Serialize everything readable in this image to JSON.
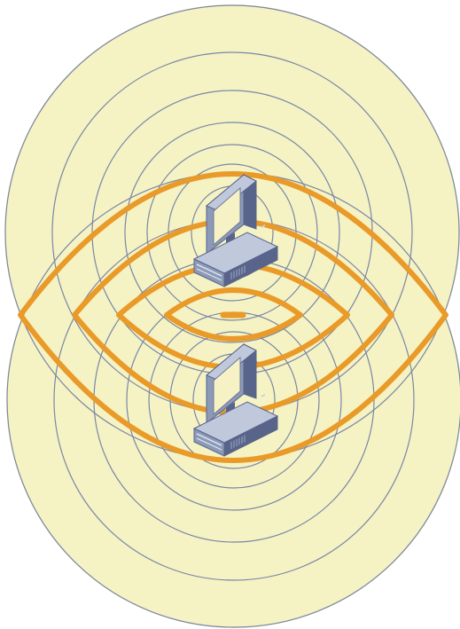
{
  "diagram": {
    "kind": "wave-interference",
    "sources": [
      {
        "icon": "desktop-computer-icon"
      },
      {
        "icon": "desktop-computer-icon"
      }
    ],
    "colors": {
      "background": "#ffffff",
      "field_fill": "#f5f3c3",
      "ring_stroke": "#7b86a6",
      "interference_stroke": "#e99a28",
      "computer_body": "#8c9ab8",
      "computer_dark": "#58648a",
      "computer_light": "#c0c8dc",
      "screen": "#f6f2c6"
    }
  }
}
